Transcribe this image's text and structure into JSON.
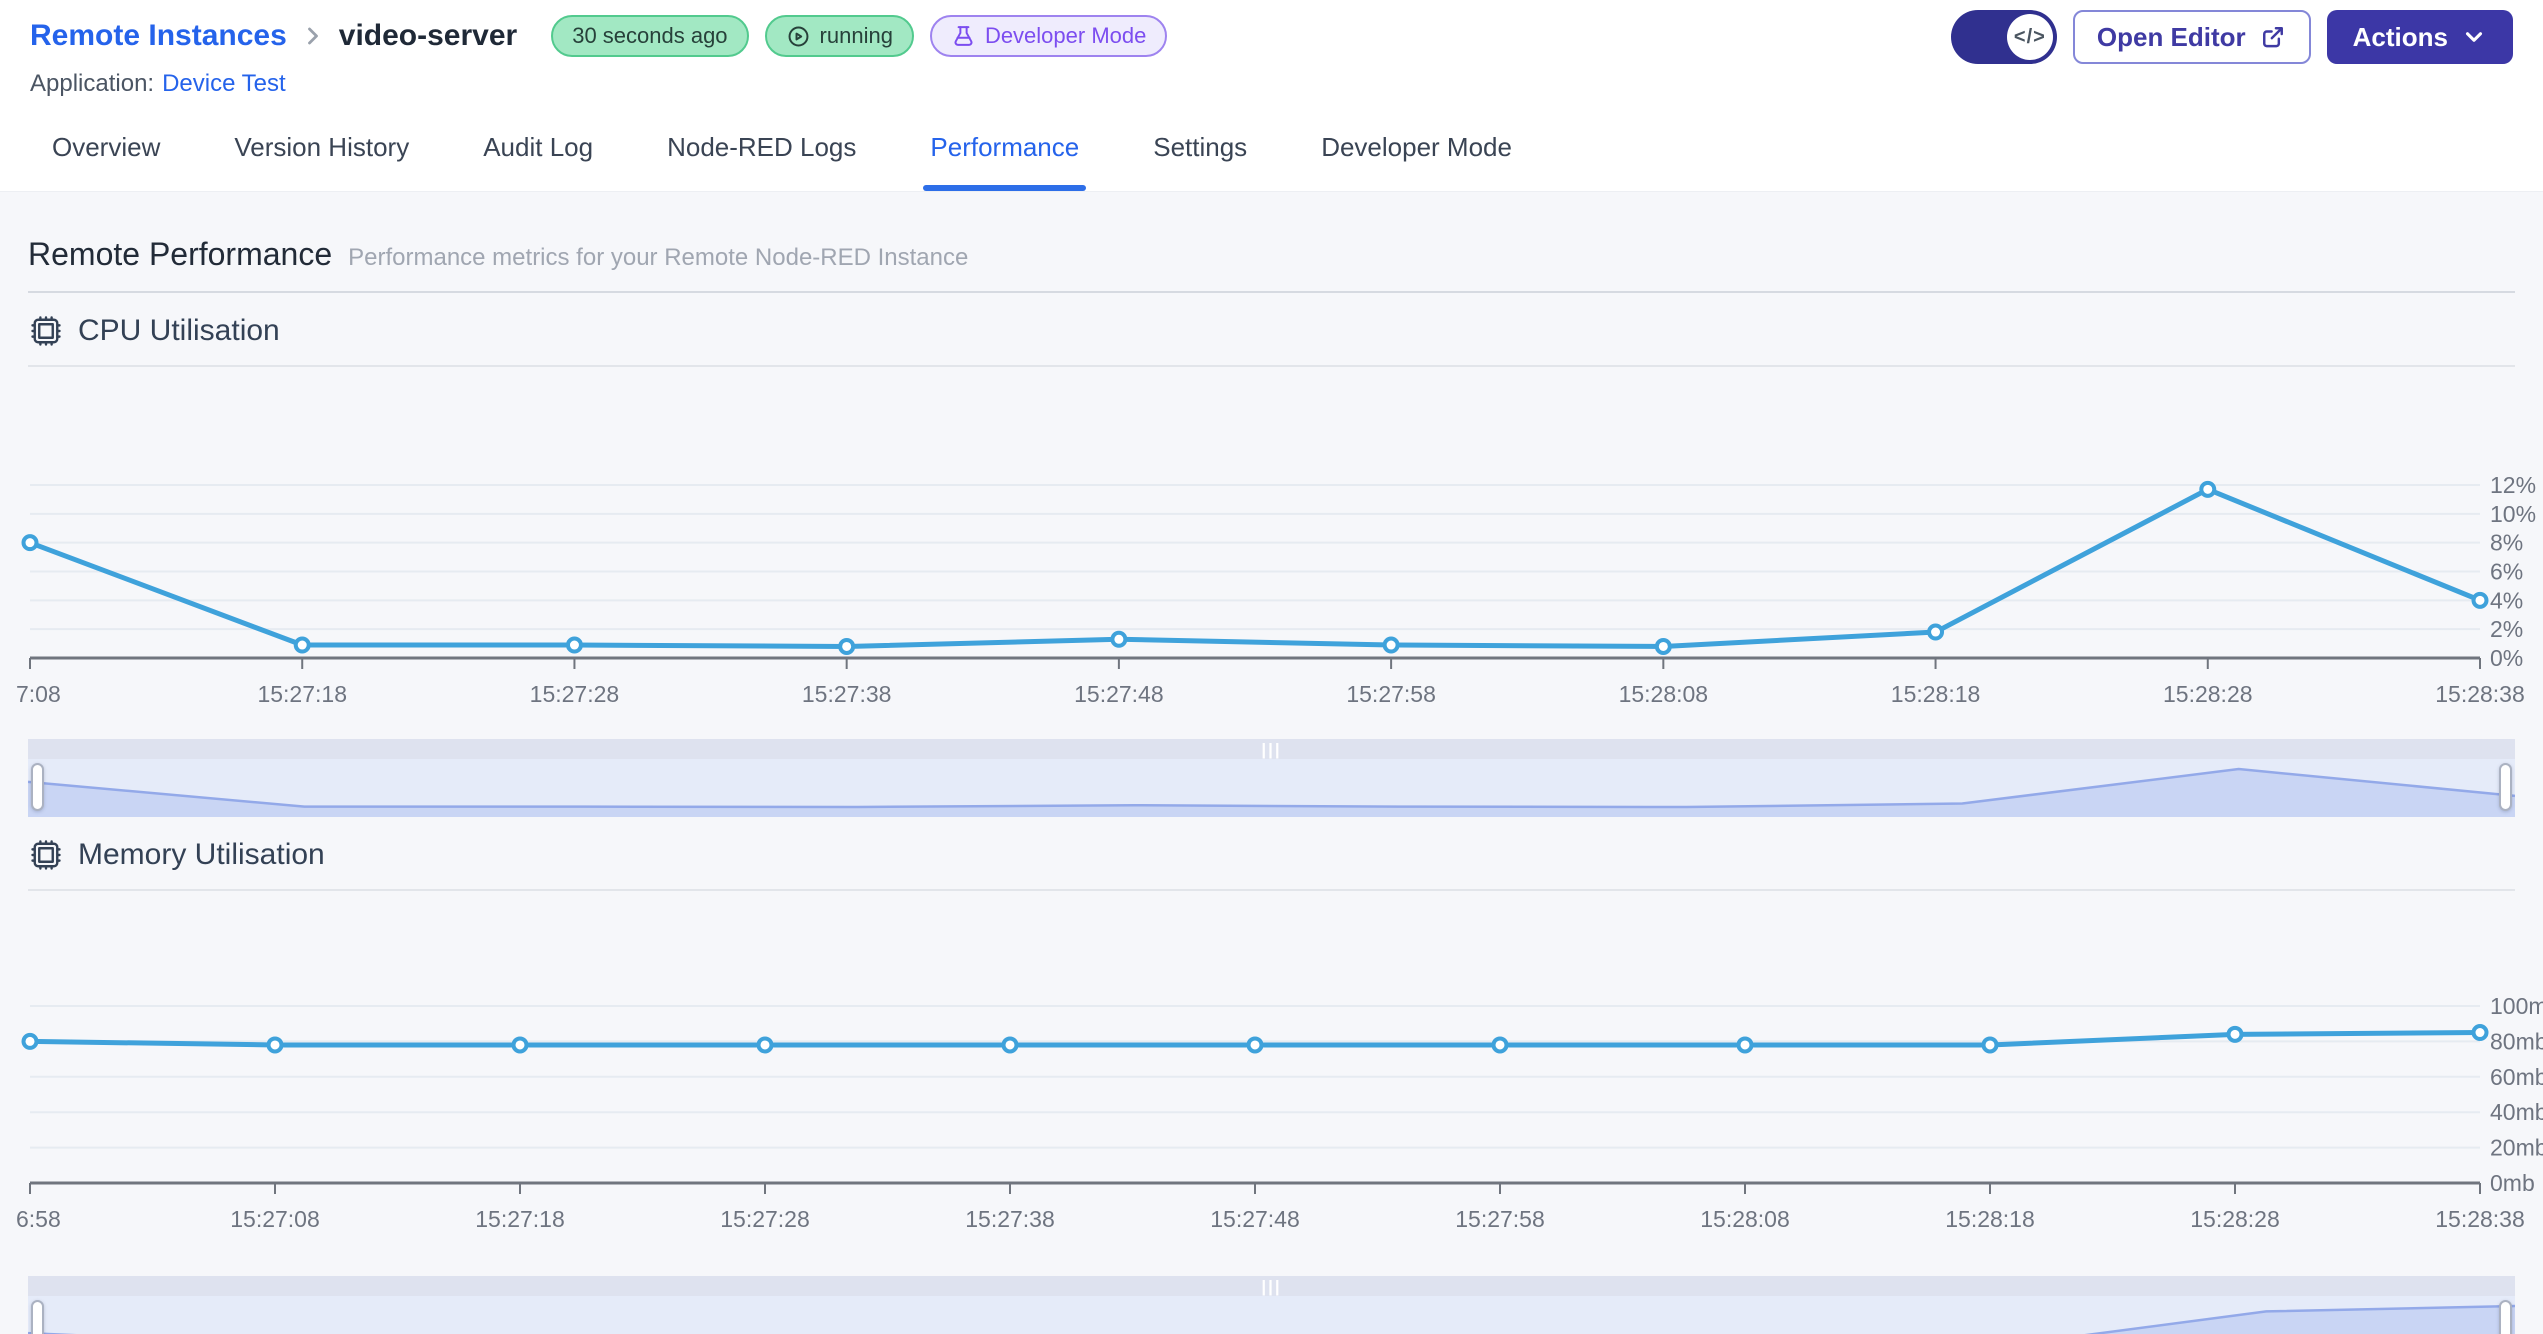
{
  "header": {
    "breadcrumb": {
      "parent": "Remote Instances",
      "current": "video-server"
    },
    "badges": {
      "last_seen": "30 seconds ago",
      "status": "running",
      "mode": "Developer Mode"
    },
    "application_label": "Application:",
    "application_name": "Device Test",
    "open_editor_label": "Open Editor",
    "actions_label": "Actions"
  },
  "icons": {
    "code_toggle": "</>",
    "drag_handle": "|||"
  },
  "tabs": [
    {
      "label": "Overview",
      "active": false
    },
    {
      "label": "Version History",
      "active": false
    },
    {
      "label": "Audit Log",
      "active": false
    },
    {
      "label": "Node-RED Logs",
      "active": false
    },
    {
      "label": "Performance",
      "active": true
    },
    {
      "label": "Settings",
      "active": false
    },
    {
      "label": "Developer Mode",
      "active": false
    }
  ],
  "page": {
    "title": "Remote Performance",
    "subtitle": "Performance metrics for your Remote Node-RED Instance"
  },
  "colors": {
    "accent_blue": "#2563EB",
    "line": "#3FA2DB",
    "grid": "#E6EBF1",
    "axis": "#70757E",
    "tick_text": "#6E7480",
    "brush_fill": "#C9D5F4",
    "brush_line": "#93A9E9",
    "badge_green_bg": "#A2E8C3",
    "badge_green_border": "#52CA8E",
    "badge_purple_text": "#7C4DF0",
    "primary_button": "#3C37A6",
    "toggle_bg": "#30308F"
  },
  "chart_data": [
    {
      "type": "line",
      "title": "CPU Utilisation",
      "categories": [
        "7:08",
        "15:27:18",
        "15:27:28",
        "15:27:38",
        "15:27:48",
        "15:27:58",
        "15:28:08",
        "15:28:18",
        "15:28:28",
        "15:28:38"
      ],
      "values": [
        8,
        0.9,
        0.9,
        0.8,
        1.3,
        0.9,
        0.8,
        1.8,
        11.7,
        4
      ],
      "ylabel_unit": "%",
      "yticks": [
        0,
        2,
        4,
        6,
        8,
        10,
        12
      ],
      "ylim": [
        0,
        12
      ],
      "xlabel": "",
      "ylabel": "",
      "legend_position": "none",
      "grid": true,
      "yaxis_position": "right"
    },
    {
      "type": "line",
      "title": "Memory Utilisation",
      "categories": [
        "6:58",
        "15:27:08",
        "15:27:18",
        "15:27:28",
        "15:27:38",
        "15:27:48",
        "15:27:58",
        "15:28:08",
        "15:28:18",
        "15:28:28",
        "15:28:38"
      ],
      "values": [
        80,
        78,
        78,
        78,
        78,
        78,
        78,
        78,
        78,
        84,
        85
      ],
      "ylabel_unit": "mb",
      "yticks": [
        0,
        20,
        40,
        60,
        80,
        100
      ],
      "ylim": [
        0,
        100
      ],
      "xlabel": "",
      "ylabel": "",
      "legend_position": "none",
      "grid": true,
      "yaxis_position": "right"
    }
  ]
}
